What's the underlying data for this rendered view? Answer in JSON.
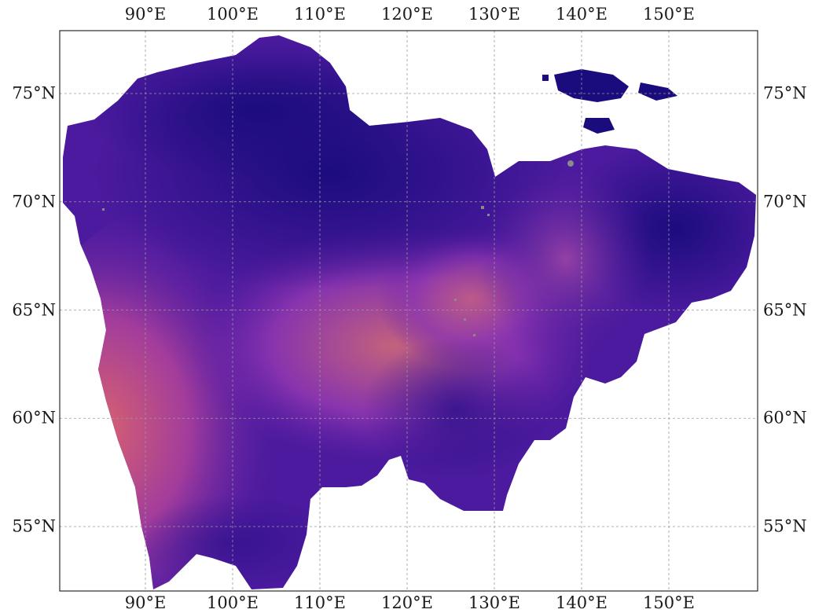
{
  "map": {
    "longitude_labels": [
      {
        "lon": 90,
        "text": "90°E"
      },
      {
        "lon": 100,
        "text": "100°E"
      },
      {
        "lon": 110,
        "text": "110°E"
      },
      {
        "lon": 120,
        "text": "120°E"
      },
      {
        "lon": 130,
        "text": "130°E"
      },
      {
        "lon": 140,
        "text": "140°E"
      },
      {
        "lon": 150,
        "text": "150°E"
      }
    ],
    "latitude_labels": [
      {
        "lat": 55,
        "text": "55°N"
      },
      {
        "lat": 60,
        "text": "60°N"
      },
      {
        "lat": 65,
        "text": "65°N"
      },
      {
        "lat": 70,
        "text": "70°N"
      },
      {
        "lat": 75,
        "text": "75°N"
      }
    ],
    "extent": {
      "lon_min": 80,
      "lon_max": 160,
      "lat_min": 52,
      "lat_max": 78
    },
    "gridlines": true,
    "projection": "PlateCarree",
    "colormap": "plasma-like (dark blue to purple to orange)",
    "colors": {
      "low": "#160b7a",
      "mid": "#7a2ab8",
      "high": "#e07a6a",
      "missing": "#8a8a8a",
      "ocean": "#ffffff",
      "grid": "#9a9a9a"
    }
  }
}
